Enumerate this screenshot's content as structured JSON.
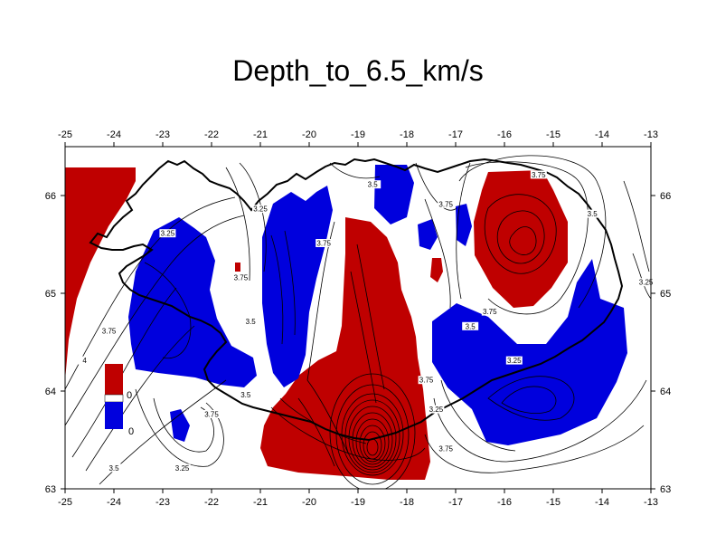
{
  "title": "Depth_to_6.5_km/s",
  "colors": {
    "red": "#bf0000",
    "blue": "#0000dd",
    "contour": "#000000",
    "frame": "#000000"
  },
  "map": {
    "lon_range": [
      -25,
      -13
    ],
    "lat_range": [
      63,
      66.5
    ],
    "lon_ticks": [
      "-25",
      "-24",
      "-23",
      "-22",
      "-21",
      "-20",
      "-19",
      "-18",
      "-17",
      "-16",
      "-15",
      "-14",
      "-13"
    ],
    "lat_ticks": [
      "63",
      "64",
      "65",
      "66"
    ]
  },
  "contour_labels": [
    {
      "text": "3.5",
      "lon": -18.7,
      "lat": 66.1
    },
    {
      "text": "3.75",
      "lon": -15.3,
      "lat": 66.2
    },
    {
      "text": "3.5",
      "lon": -14.2,
      "lat": 65.8
    },
    {
      "text": "3.25",
      "lon": -13.1,
      "lat": 65.1
    },
    {
      "text": "3.25",
      "lon": -21.0,
      "lat": 65.85
    },
    {
      "text": "3.25",
      "lon": -22.9,
      "lat": 65.6
    },
    {
      "text": "3.75",
      "lon": -21.4,
      "lat": 65.15
    },
    {
      "text": "3.5",
      "lon": -21.2,
      "lat": 64.7
    },
    {
      "text": "3.75",
      "lon": -24.1,
      "lat": 64.6
    },
    {
      "text": "4",
      "lon": -24.6,
      "lat": 64.3
    },
    {
      "text": "3.75",
      "lon": -19.7,
      "lat": 65.5
    },
    {
      "text": "3.75",
      "lon": -17.2,
      "lat": 65.9
    },
    {
      "text": "3.75",
      "lon": -16.3,
      "lat": 64.8
    },
    {
      "text": "3.5",
      "lon": -16.7,
      "lat": 64.65
    },
    {
      "text": "3.25",
      "lon": -15.8,
      "lat": 64.3
    },
    {
      "text": "3.75",
      "lon": -17.6,
      "lat": 64.1
    },
    {
      "text": "3.25",
      "lon": -17.4,
      "lat": 63.8
    },
    {
      "text": "3.75",
      "lon": -17.2,
      "lat": 63.4
    },
    {
      "text": "3.75",
      "lon": -22.0,
      "lat": 63.75
    },
    {
      "text": "3.5",
      "lon": -24.0,
      "lat": 63.2
    },
    {
      "text": "3.25",
      "lon": -22.6,
      "lat": 63.2
    },
    {
      "text": "3.5",
      "lon": -21.3,
      "lat": 63.95
    }
  ],
  "legend": {
    "label_top": "0",
    "label_bottom": "0"
  }
}
